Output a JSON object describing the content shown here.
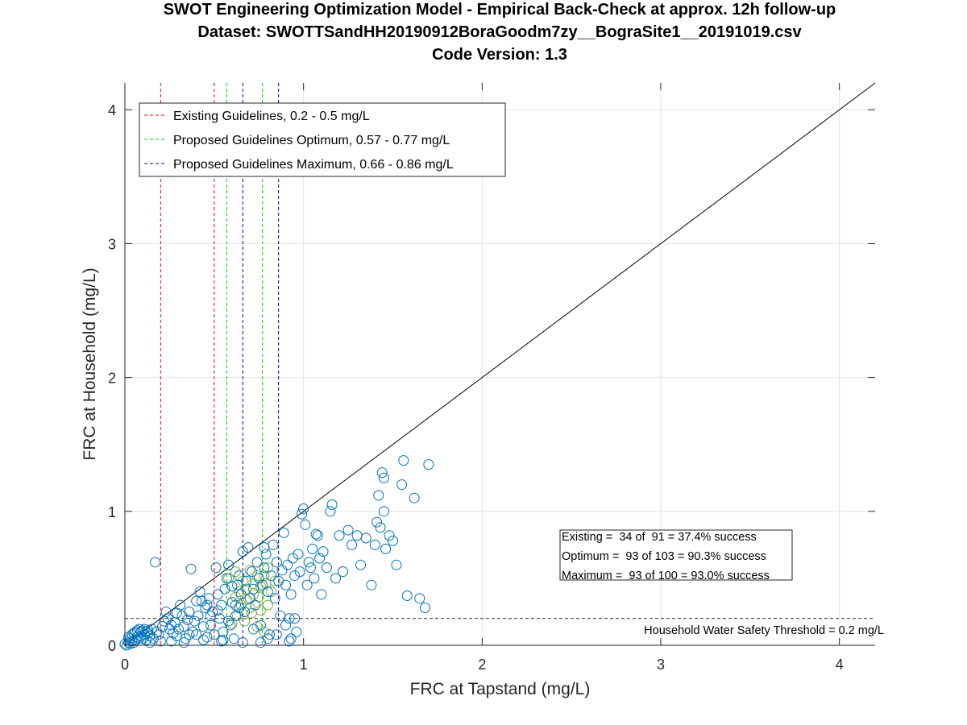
{
  "chart_data": {
    "type": "scatter",
    "title_lines": [
      "SWOT Engineering Optimization Model - Empirical Back-Check at approx. 12h follow-up",
      "Dataset: SWOTTSandHH20190912BoraGoodm7zy__BograSite1__20191019.csv",
      "Code Version: 1.3"
    ],
    "xlabel": "FRC at Tapstand (mg/L)",
    "ylabel": "FRC at Household (mg/L)",
    "xlim": [
      0,
      4.2
    ],
    "ylim": [
      0,
      4.2
    ],
    "xticks": [
      0,
      1,
      2,
      3,
      4
    ],
    "yticks": [
      0,
      1,
      2,
      3,
      4
    ],
    "grid": true,
    "legend_position": "top-left",
    "legend": [
      {
        "label": "Existing Guidelines, 0.2 - 0.5 mg/L",
        "color": "#ff0000"
      },
      {
        "label": "Proposed Guidelines Optimum, 0.57 - 0.77 mg/L",
        "color": "#00cc00"
      },
      {
        "label": "Proposed Guidelines Maximum, 0.66 - 0.86 mg/L",
        "color": "#0000aa"
      }
    ],
    "vertical_lines": [
      {
        "x": 0.2,
        "color": "#ff0000"
      },
      {
        "x": 0.5,
        "color": "#ff0000"
      },
      {
        "x": 0.57,
        "color": "#00cc00"
      },
      {
        "x": 0.77,
        "color": "#00cc00"
      },
      {
        "x": 0.66,
        "color": "#0000aa"
      },
      {
        "x": 0.86,
        "color": "#0000aa"
      }
    ],
    "threshold": {
      "y": 0.2,
      "label": "Household Water Safety Threshold = 0.2 mg/L"
    },
    "identity_line": true,
    "annotation_lines": [
      "Existing =  34 of  91 = 37.4% success",
      "Optimum =  93 of 103 = 90.3% success",
      "Maximum =  93 of 100 = 93.0% success"
    ],
    "point_color": "#0072bd",
    "highlight_color": "#77ac30",
    "points": [
      [
        0.0,
        0.01
      ],
      [
        0.01,
        0.0
      ],
      [
        0.02,
        0.02
      ],
      [
        0.03,
        0.01
      ],
      [
        0.04,
        0.03
      ],
      [
        0.05,
        0.02
      ],
      [
        0.06,
        0.04
      ],
      [
        0.07,
        0.06
      ],
      [
        0.08,
        0.05
      ],
      [
        0.09,
        0.07
      ],
      [
        0.1,
        0.05
      ],
      [
        0.11,
        0.08
      ],
      [
        0.12,
        0.1
      ],
      [
        0.13,
        0.09
      ],
      [
        0.14,
        0.07
      ],
      [
        0.15,
        0.12
      ],
      [
        0.04,
        0.08
      ],
      [
        0.06,
        0.1
      ],
      [
        0.08,
        0.12
      ],
      [
        0.1,
        0.11
      ],
      [
        0.02,
        0.06
      ],
      [
        0.05,
        0.09
      ],
      [
        0.07,
        0.11
      ],
      [
        0.09,
        0.1
      ],
      [
        0.11,
        0.12
      ],
      [
        0.13,
        0.11
      ],
      [
        0.03,
        0.05
      ],
      [
        0.12,
        0.04
      ],
      [
        0.14,
        0.02
      ],
      [
        0.16,
        0.05
      ],
      [
        0.17,
        0.62
      ],
      [
        0.18,
        0.1
      ],
      [
        0.19,
        0.08
      ],
      [
        0.2,
        0.03
      ],
      [
        0.21,
        0.14
      ],
      [
        0.22,
        0.18
      ],
      [
        0.23,
        0.25
      ],
      [
        0.24,
        0.2
      ],
      [
        0.25,
        0.12
      ],
      [
        0.26,
        0.15
      ],
      [
        0.27,
        0.09
      ],
      [
        0.28,
        0.17
      ],
      [
        0.29,
        0.07
      ],
      [
        0.3,
        0.12
      ],
      [
        0.31,
        0.3
      ],
      [
        0.32,
        0.22
      ],
      [
        0.33,
        0.14
      ],
      [
        0.34,
        0.05
      ],
      [
        0.35,
        0.19
      ],
      [
        0.36,
        0.25
      ],
      [
        0.37,
        0.57
      ],
      [
        0.38,
        0.1
      ],
      [
        0.39,
        0.18
      ],
      [
        0.4,
        0.08
      ],
      [
        0.41,
        0.22
      ],
      [
        0.42,
        0.4
      ],
      [
        0.43,
        0.33
      ],
      [
        0.44,
        0.14
      ],
      [
        0.45,
        0.28
      ],
      [
        0.46,
        0.06
      ],
      [
        0.47,
        0.35
      ],
      [
        0.48,
        0.15
      ],
      [
        0.49,
        0.25
      ],
      [
        0.5,
        0.08
      ],
      [
        0.51,
        0.58
      ],
      [
        0.52,
        0.38
      ],
      [
        0.53,
        0.2
      ],
      [
        0.54,
        0.3
      ],
      [
        0.55,
        0.1
      ],
      [
        0.56,
        0.42
      ],
      [
        0.57,
        0.5
      ],
      [
        0.58,
        0.6
      ],
      [
        0.59,
        0.15
      ],
      [
        0.6,
        0.32
      ],
      [
        0.61,
        0.05
      ],
      [
        0.62,
        0.22
      ],
      [
        0.63,
        0.45
      ],
      [
        0.64,
        0.52
      ],
      [
        0.65,
        0.38
      ],
      [
        0.66,
        0.7
      ],
      [
        0.67,
        0.25
      ],
      [
        0.68,
        0.48
      ],
      [
        0.69,
        0.73
      ],
      [
        0.7,
        0.35
      ],
      [
        0.71,
        0.55
      ],
      [
        0.72,
        0.42
      ],
      [
        0.73,
        0.3
      ],
      [
        0.74,
        0.62
      ],
      [
        0.75,
        0.5
      ],
      [
        0.76,
        0.15
      ],
      [
        0.77,
        0.45
      ],
      [
        0.78,
        0.58
      ],
      [
        0.79,
        0.68
      ],
      [
        0.8,
        0.4
      ],
      [
        0.81,
        0.08
      ],
      [
        0.82,
        0.52
      ],
      [
        0.83,
        0.75
      ],
      [
        0.84,
        0.35
      ],
      [
        0.85,
        0.62
      ],
      [
        0.86,
        0.48
      ],
      [
        0.87,
        0.22
      ],
      [
        0.88,
        0.56
      ],
      [
        0.89,
        0.84
      ],
      [
        0.9,
        0.45
      ],
      [
        0.91,
        0.6
      ],
      [
        0.92,
        0.2
      ],
      [
        0.93,
        0.38
      ],
      [
        0.94,
        0.65
      ],
      [
        0.95,
        0.52
      ],
      [
        0.96,
        0.1
      ],
      [
        0.97,
        0.68
      ],
      [
        0.98,
        0.55
      ],
      [
        0.99,
        0.98
      ],
      [
        1.0,
        1.02
      ],
      [
        1.01,
        0.9
      ],
      [
        1.02,
        0.45
      ],
      [
        1.03,
        0.62
      ],
      [
        1.04,
        0.58
      ],
      [
        1.05,
        0.72
      ],
      [
        1.06,
        0.5
      ],
      [
        1.08,
        0.82
      ],
      [
        1.09,
        0.65
      ],
      [
        1.1,
        0.38
      ],
      [
        1.11,
        0.7
      ],
      [
        1.13,
        0.58
      ],
      [
        1.15,
        1.0
      ],
      [
        1.16,
        1.05
      ],
      [
        1.18,
        0.5
      ],
      [
        1.2,
        0.82
      ],
      [
        1.22,
        0.55
      ],
      [
        1.25,
        0.86
      ],
      [
        1.27,
        0.75
      ],
      [
        1.3,
        0.82
      ],
      [
        1.32,
        0.6
      ],
      [
        1.35,
        0.8
      ],
      [
        1.38,
        0.45
      ],
      [
        1.4,
        0.75
      ],
      [
        1.42,
        1.12
      ],
      [
        1.43,
        0.88
      ],
      [
        1.45,
        1.0
      ],
      [
        1.45,
        1.25
      ],
      [
        1.46,
        0.72
      ],
      [
        1.48,
        0.82
      ],
      [
        1.5,
        0.78
      ],
      [
        1.52,
        0.6
      ],
      [
        1.55,
        1.2
      ],
      [
        1.56,
        1.38
      ],
      [
        1.58,
        0.37
      ],
      [
        1.62,
        1.1
      ],
      [
        1.65,
        0.35
      ],
      [
        1.68,
        0.28
      ],
      [
        1.7,
        1.35
      ],
      [
        1.44,
        1.29
      ],
      [
        1.41,
        0.92
      ],
      [
        1.07,
        0.83
      ],
      [
        0.78,
        0.73
      ],
      [
        0.62,
        0.3
      ],
      [
        0.58,
        0.18
      ],
      [
        0.48,
        0.22
      ],
      [
        0.36,
        0.08
      ],
      [
        0.33,
        0.02
      ],
      [
        0.29,
        0.24
      ],
      [
        0.26,
        0.03
      ],
      [
        0.44,
        0.04
      ],
      [
        0.54,
        0.03
      ],
      [
        0.55,
        0.04
      ],
      [
        0.66,
        0.02
      ],
      [
        0.72,
        0.12
      ],
      [
        0.8,
        0.05
      ],
      [
        0.85,
        0.08
      ],
      [
        0.9,
        0.15
      ],
      [
        0.93,
        0.05
      ],
      [
        0.95,
        0.2
      ],
      [
        0.92,
        0.03
      ],
      [
        0.76,
        0.02
      ],
      [
        0.64,
        0.28
      ],
      [
        0.6,
        0.44
      ],
      [
        0.52,
        0.26
      ],
      [
        0.46,
        0.3
      ],
      [
        0.4,
        0.33
      ]
    ],
    "highlight_points": [
      [
        0.58,
        0.5
      ],
      [
        0.6,
        0.32
      ],
      [
        0.62,
        0.36
      ],
      [
        0.65,
        0.3
      ],
      [
        0.68,
        0.42
      ],
      [
        0.7,
        0.28
      ],
      [
        0.72,
        0.46
      ],
      [
        0.75,
        0.36
      ],
      [
        0.78,
        0.52
      ],
      [
        0.8,
        0.3
      ],
      [
        0.58,
        0.6
      ],
      [
        0.62,
        0.55
      ],
      [
        0.66,
        0.48
      ],
      [
        0.7,
        0.56
      ],
      [
        0.74,
        0.52
      ],
      [
        0.76,
        0.44
      ],
      [
        0.8,
        0.58
      ],
      [
        0.82,
        0.4
      ],
      [
        0.84,
        0.48
      ],
      [
        0.64,
        0.4
      ],
      [
        0.68,
        0.34
      ],
      [
        0.72,
        0.38
      ],
      [
        0.76,
        0.26
      ],
      [
        0.79,
        0.46
      ],
      [
        0.6,
        0.16
      ],
      [
        0.63,
        0.22
      ],
      [
        0.67,
        0.18
      ],
      [
        0.71,
        0.24
      ],
      [
        0.74,
        0.14
      ],
      [
        0.78,
        0.1
      ]
    ]
  }
}
